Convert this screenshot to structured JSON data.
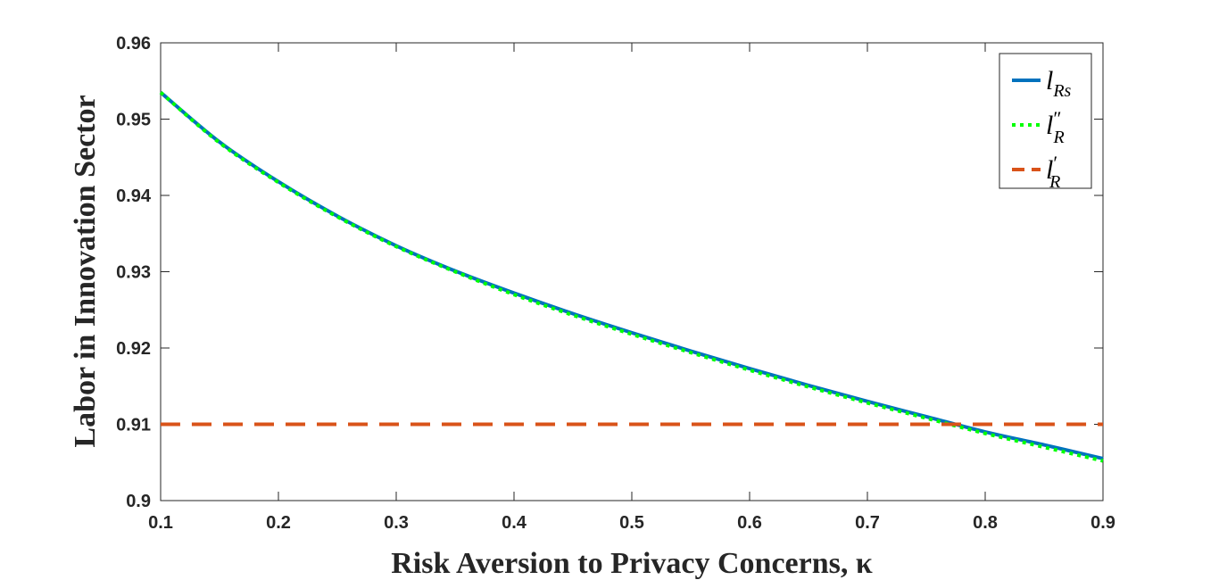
{
  "chart_data": {
    "type": "line",
    "title": "",
    "xlabel": "Risk Aversion to Privacy Concerns, κ",
    "ylabel": "Labor in Innovation Sector",
    "xlim": [
      0.1,
      0.9
    ],
    "ylim": [
      0.9,
      0.96
    ],
    "xticks": [
      "0.1",
      "0.2",
      "0.3",
      "0.4",
      "0.5",
      "0.6",
      "0.7",
      "0.8",
      "0.9"
    ],
    "yticks": [
      "0.9",
      "0.91",
      "0.92",
      "0.93",
      "0.94",
      "0.95",
      "0.96"
    ],
    "grid": false,
    "legend_position": "top-right",
    "x": [
      0.1,
      0.15,
      0.2,
      0.25,
      0.3,
      0.35,
      0.4,
      0.45,
      0.5,
      0.55,
      0.6,
      0.65,
      0.7,
      0.75,
      0.8,
      0.85,
      0.9
    ],
    "series": [
      {
        "name": "l_Rs",
        "name_main": "l",
        "name_sub": "Rs",
        "name_prime": "",
        "color": "#0072BD",
        "style": "solid",
        "values": [
          0.9535,
          0.947,
          0.9418,
          0.9373,
          0.9334,
          0.9301,
          0.9272,
          0.9245,
          0.922,
          0.9196,
          0.9173,
          0.9151,
          0.913,
          0.911,
          0.909,
          0.9073,
          0.9055
        ]
      },
      {
        "name": "l''_R",
        "name_main": "l",
        "name_sub": "R",
        "name_prime": "″",
        "color": "#00FF00",
        "style": "dotted",
        "values": [
          0.9535,
          0.9469,
          0.9417,
          0.9372,
          0.9333,
          0.93,
          0.927,
          0.9243,
          0.9218,
          0.9194,
          0.9171,
          0.9149,
          0.9128,
          0.9108,
          0.9088,
          0.907,
          0.9052
        ]
      },
      {
        "name": "l'_R",
        "name_main": "l",
        "name_sub": "R",
        "name_prime": "′",
        "color": "#D95319",
        "style": "dashed",
        "values": [
          0.91,
          0.91,
          0.91,
          0.91,
          0.91,
          0.91,
          0.91,
          0.91,
          0.91,
          0.91,
          0.91,
          0.91,
          0.91,
          0.91,
          0.91,
          0.91,
          0.91
        ]
      }
    ]
  }
}
